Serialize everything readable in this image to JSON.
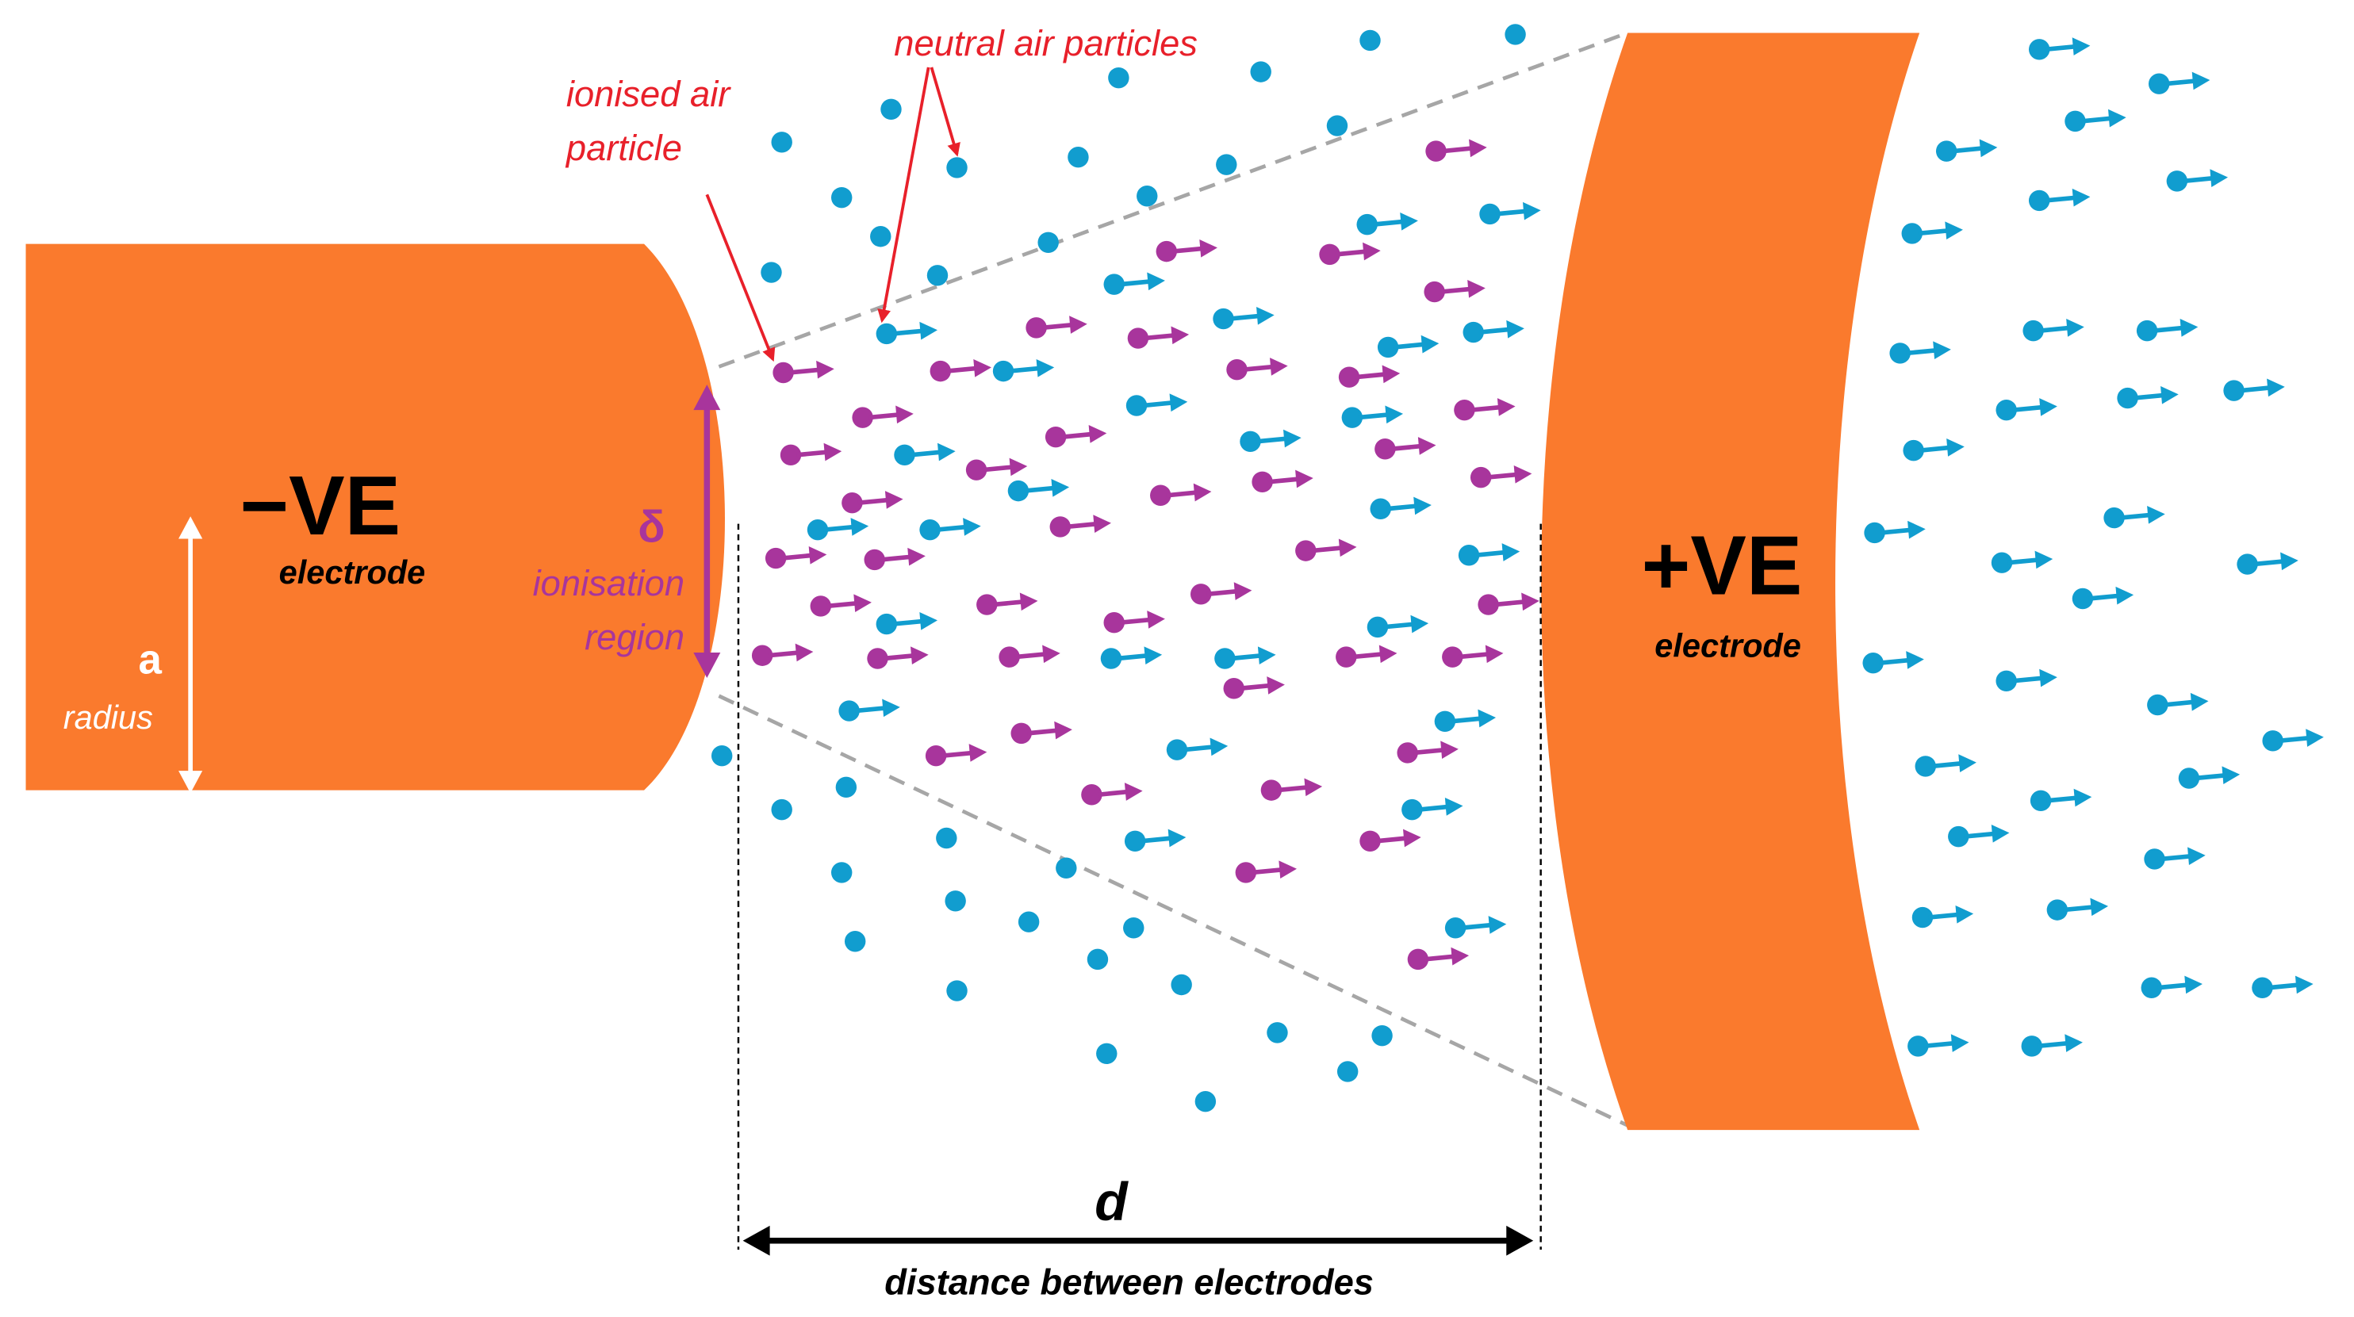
{
  "colors": {
    "electrode": "#FA7A2D",
    "neutral": "#119DCF",
    "ionised": "#A8359C",
    "callout": "#E8202A",
    "delta": "#A8359C",
    "black": "#000000",
    "white": "#FFFFFF",
    "guide": "#A6A6A6"
  },
  "neg_electrode": {
    "symbol": "−VE",
    "sub": "electrode"
  },
  "pos_electrode": {
    "symbol": "+VE",
    "sub": "electrode"
  },
  "radius": {
    "symbol": "a",
    "label": "radius"
  },
  "ionisation": {
    "symbol": "δ",
    "line1": "ionisation",
    "line2": "region"
  },
  "callouts": {
    "ionised_line1": "ionised air",
    "ionised_line2": "particle",
    "neutral": "neutral air particles"
  },
  "distance": {
    "symbol": "d",
    "label": "distance between electrodes"
  }
}
